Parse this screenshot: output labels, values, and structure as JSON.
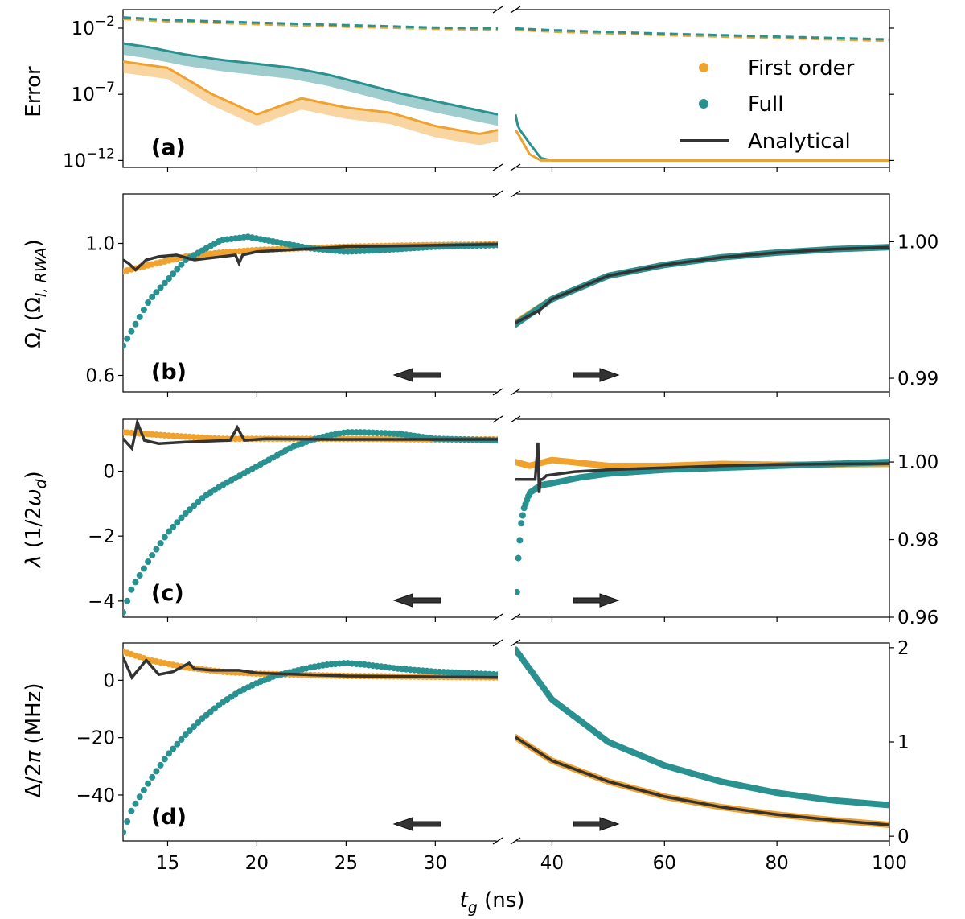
{
  "colors": {
    "first_order": "#F0A22E",
    "full": "#2A9191",
    "analytical": "#333333"
  },
  "xlabel": "t_g (ns)",
  "legend": {
    "first_order": "First order",
    "full": "Full",
    "analytical": "Analytical"
  },
  "chart_data": [
    {
      "id": "a",
      "type": "line",
      "panel_label": "(a)",
      "ylabel": "Error",
      "yscale": "log",
      "left": {
        "xlim": [
          12.5,
          33.5
        ],
        "ylim": [
          3e-13,
          0.25
        ],
        "xticks": [
          15,
          20,
          25,
          30
        ],
        "yticks": [
          "10^-2",
          "10^-7",
          "10^-12"
        ]
      },
      "right": {
        "xlim": [
          33.5,
          100
        ],
        "ylim": [
          3e-13,
          0.25
        ],
        "xticks": [
          40,
          60,
          80,
          100
        ]
      },
      "series": [
        {
          "name": "First order (bound, dashed)",
          "x": [
            12.5,
            15,
            20,
            25,
            30,
            33.5,
            40,
            60,
            80,
            100
          ],
          "y": [
            0.05,
            0.033,
            0.02,
            0.013,
            0.009,
            0.0075,
            0.0055,
            0.003,
            0.0018,
            0.0011
          ]
        },
        {
          "name": "Full (bound, dashed)",
          "x": [
            12.5,
            15,
            20,
            25,
            30,
            33.5,
            40,
            60,
            80,
            100
          ],
          "y": [
            0.065,
            0.042,
            0.026,
            0.017,
            0.011,
            0.0095,
            0.007,
            0.0038,
            0.0023,
            0.0014
          ]
        },
        {
          "name": "Full",
          "x": [
            12.5,
            14,
            16,
            18,
            20,
            22,
            24,
            26,
            28,
            30,
            32,
            33.5,
            34,
            36,
            38,
            40,
            45,
            50,
            100
          ],
          "y": [
            0.0007,
            0.00035,
            0.0001,
            4e-05,
            2e-05,
            1e-05,
            3e-06,
            6e-07,
            1.2e-07,
            3e-08,
            8e-09,
            3e-09,
            3e-10,
            2e-11,
            1.5e-12,
            1e-12,
            1e-12,
            1e-12,
            1e-12
          ]
        },
        {
          "name": "First order",
          "x": [
            12.5,
            15,
            17.5,
            20,
            22.5,
            25,
            27.5,
            30,
            32.5,
            33.5,
            34,
            36,
            38,
            40,
            45,
            100
          ],
          "y": [
            3e-05,
            1e-05,
            1e-07,
            3e-09,
            5e-08,
            1e-08,
            4e-09,
            4e-10,
            1e-10,
            2e-10,
            1e-10,
            3e-12,
            1e-12,
            1e-12,
            1e-12,
            1e-12
          ]
        }
      ]
    },
    {
      "id": "b",
      "type": "scatter",
      "panel_label": "(b)",
      "ylabel": "Ω_I (Ω_I,RWA)",
      "left": {
        "xlim": [
          12.5,
          33.5
        ],
        "ylim": [
          0.55,
          1.15
        ],
        "xticks": [
          15,
          20,
          25,
          30
        ],
        "yticks": [
          "1.0",
          "0.6"
        ]
      },
      "right": {
        "xlim": [
          33.5,
          100
        ],
        "ylim": [
          0.989,
          1.0035
        ],
        "xticks": [
          40,
          60,
          80,
          100
        ],
        "yticks": [
          "1.00",
          "0.99"
        ]
      },
      "series": [
        {
          "name": "First order",
          "left_x": [
            12.5,
            14,
            16,
            18,
            20,
            25,
            30,
            33.5
          ],
          "left_y": [
            0.915,
            0.935,
            0.96,
            0.972,
            0.98,
            0.99,
            0.995,
            0.997
          ],
          "right_x": [
            33.5,
            40,
            50,
            60,
            70,
            80,
            90,
            100
          ],
          "right_y": [
            0.99405,
            0.9958,
            0.9975,
            0.9983,
            0.99885,
            0.9992,
            0.99945,
            0.9996
          ]
        },
        {
          "name": "Full",
          "left_x": [
            12.5,
            14,
            16,
            18,
            19.5,
            21,
            23,
            25,
            27,
            30,
            33.5
          ],
          "left_y": [
            0.69,
            0.83,
            0.95,
            1.01,
            1.02,
            1.005,
            0.985,
            0.975,
            0.98,
            0.99,
            0.995
          ],
          "right_x": [
            33.5,
            40,
            50,
            60,
            70,
            80,
            90,
            100
          ],
          "right_y": [
            0.99395,
            0.9958,
            0.9975,
            0.9983,
            0.99885,
            0.9992,
            0.99945,
            0.9996
          ]
        },
        {
          "name": "Analytical",
          "left_x": [
            12.5,
            12.8,
            13.2,
            13.8,
            14.5,
            15.5,
            16.5,
            18.8,
            19.0,
            19.2,
            20,
            25,
            33.5
          ],
          "left_y": [
            0.95,
            0.94,
            0.92,
            0.95,
            0.96,
            0.965,
            0.95,
            0.965,
            0.94,
            0.965,
            0.975,
            0.99,
            0.997
          ],
          "right_x": [
            33.5,
            37.5,
            37.7,
            37.9,
            40,
            50,
            60,
            70,
            80,
            90,
            100
          ],
          "right_y": [
            0.99405,
            0.99493,
            0.99483,
            0.99503,
            0.9958,
            0.9975,
            0.9983,
            0.99885,
            0.9992,
            0.99945,
            0.9996
          ]
        }
      ]
    },
    {
      "id": "c",
      "type": "scatter",
      "panel_label": "(c)",
      "ylabel": "λ (1/2ω_d)",
      "left": {
        "xlim": [
          12.5,
          33.5
        ],
        "ylim": [
          -4.5,
          1.6
        ],
        "xticks": [
          15,
          20,
          25,
          30
        ],
        "yticks": [
          "0",
          "−2",
          "−4"
        ]
      },
      "right": {
        "xlim": [
          33.5,
          100
        ],
        "ylim": [
          0.96,
          1.011
        ],
        "xticks": [
          40,
          60,
          80,
          100
        ],
        "yticks": [
          "1.00",
          "0.98",
          "0.96"
        ]
      },
      "series": [
        {
          "name": "First order",
          "left_x": [
            12.5,
            15,
            18,
            22,
            26,
            30,
            33.5
          ],
          "left_y": [
            1.2,
            1.1,
            1.0,
            1.0,
            1.0,
            0.98,
            0.98
          ],
          "right_x": [
            33.5,
            36,
            40,
            50,
            60,
            70,
            80,
            90,
            100
          ],
          "right_y": [
            1.0,
            0.999,
            1.0005,
            0.999,
            0.999,
            0.9995,
            0.9993,
            0.9994,
            0.9995
          ]
        },
        {
          "name": "Full",
          "left_x": [
            12.5,
            13,
            14,
            15,
            16,
            17,
            18,
            19,
            20,
            21,
            22,
            23,
            24,
            25,
            26,
            28,
            30,
            33.5
          ],
          "left_y": [
            -4.35,
            -3.6,
            -2.7,
            -1.9,
            -1.3,
            -0.8,
            -0.45,
            -0.15,
            0.15,
            0.45,
            0.75,
            0.95,
            1.1,
            1.2,
            1.2,
            1.15,
            1.0,
            0.95
          ],
          "right_x": [
            33.6,
            34,
            34.5,
            35,
            35.5,
            36,
            37,
            38,
            40,
            45,
            50,
            60,
            70,
            80,
            90,
            100
          ],
          "right_y": [
            0.961,
            0.975,
            0.984,
            0.988,
            0.99,
            0.992,
            0.993,
            0.994,
            0.9945,
            0.996,
            0.997,
            0.998,
            0.9985,
            0.999,
            0.9995,
            1.0
          ]
        },
        {
          "name": "Analytical",
          "left_x": [
            12.5,
            13.0,
            13.3,
            13.7,
            14.5,
            16.0,
            18.5,
            18.9,
            19.3,
            20.5,
            24,
            33.5
          ],
          "left_y": [
            1.0,
            0.7,
            1.5,
            0.95,
            0.85,
            0.9,
            0.95,
            1.35,
            0.95,
            1.0,
            0.98,
            0.98
          ],
          "right_x": [
            33.5,
            37,
            37.5,
            37.7,
            37.9,
            38.3,
            39,
            44,
            50,
            60,
            70,
            80,
            90,
            100
          ],
          "right_y": [
            0.9955,
            0.9955,
            1.005,
            0.992,
            0.9955,
            0.9955,
            0.9965,
            0.9975,
            0.998,
            0.9985,
            0.999,
            0.9993,
            0.9995,
            0.9996
          ]
        }
      ]
    },
    {
      "id": "d",
      "type": "scatter",
      "panel_label": "(d)",
      "ylabel": "Δ/2π (MHz)",
      "left": {
        "xlim": [
          12.5,
          33.5
        ],
        "ylim": [
          -56,
          13
        ],
        "xticks": [
          15,
          20,
          25,
          30
        ],
        "yticks": [
          "0",
          "−20",
          "−40"
        ]
      },
      "right": {
        "xlim": [
          33.5,
          100
        ],
        "ylim": [
          -0.05,
          2.05
        ],
        "xticks": [
          40,
          60,
          80,
          100
        ],
        "yticks": [
          "2",
          "1",
          "0"
        ]
      },
      "series": [
        {
          "name": "First order",
          "left_x": [
            12.5,
            14,
            16,
            18,
            20,
            22,
            25,
            30,
            33.5
          ],
          "left_y": [
            10,
            7,
            4.5,
            3,
            2.3,
            2,
            1.5,
            1.2,
            1.0
          ],
          "right_x": [
            33.5,
            40,
            50,
            60,
            70,
            80,
            90,
            100
          ],
          "right_y": [
            1.05,
            0.8,
            0.58,
            0.42,
            0.31,
            0.23,
            0.17,
            0.12
          ]
        },
        {
          "name": "Full",
          "left_x": [
            12.5,
            13,
            14,
            15,
            16,
            17,
            18,
            19,
            20,
            21,
            22,
            23,
            24,
            25,
            26,
            28,
            30,
            33.5
          ],
          "left_y": [
            -53,
            -45,
            -35,
            -26,
            -19,
            -13,
            -8,
            -4,
            -1,
            1.5,
            3,
            4.5,
            5.5,
            6,
            5.5,
            4,
            3,
            2
          ],
          "right_x": [
            33.5,
            40,
            50,
            60,
            70,
            80,
            90,
            100
          ],
          "right_y": [
            1.98,
            1.45,
            1.0,
            0.75,
            0.58,
            0.46,
            0.38,
            0.33
          ]
        },
        {
          "name": "Analytical",
          "left_x": [
            12.5,
            13.0,
            13.8,
            14.5,
            15.3,
            16.2,
            16.5,
            17.5,
            19,
            20,
            25,
            33.5
          ],
          "left_y": [
            8,
            1,
            7,
            2,
            3,
            6,
            4,
            3.5,
            3.5,
            2.5,
            1.5,
            1.0
          ],
          "right_x": [
            33.5,
            40,
            50,
            60,
            70,
            80,
            90,
            100
          ],
          "right_y": [
            1.05,
            0.8,
            0.58,
            0.42,
            0.31,
            0.23,
            0.17,
            0.12
          ]
        }
      ]
    }
  ]
}
